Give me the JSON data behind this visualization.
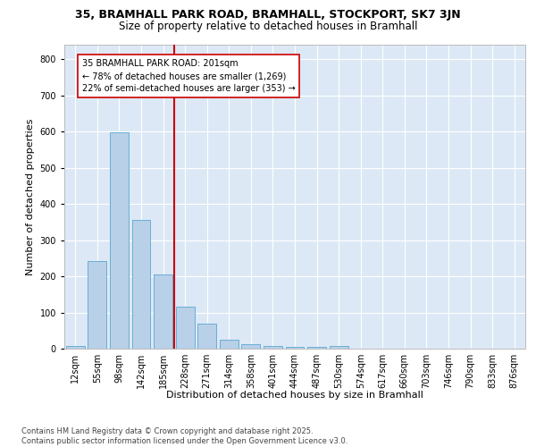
{
  "title1": "35, BRAMHALL PARK ROAD, BRAMHALL, STOCKPORT, SK7 3JN",
  "title2": "Size of property relative to detached houses in Bramhall",
  "xlabel": "Distribution of detached houses by size in Bramhall",
  "ylabel": "Number of detached properties",
  "bin_labels": [
    "12sqm",
    "55sqm",
    "98sqm",
    "142sqm",
    "185sqm",
    "228sqm",
    "271sqm",
    "314sqm",
    "358sqm",
    "401sqm",
    "444sqm",
    "487sqm",
    "530sqm",
    "574sqm",
    "617sqm",
    "660sqm",
    "703sqm",
    "746sqm",
    "790sqm",
    "833sqm",
    "876sqm"
  ],
  "bar_values": [
    8,
    242,
    598,
    355,
    205,
    115,
    70,
    25,
    13,
    8,
    5,
    5,
    8,
    0,
    0,
    0,
    0,
    0,
    0,
    0,
    0
  ],
  "bar_color": "#b8d0e8",
  "bar_edge_color": "#6aaed6",
  "vline_bin_index": 4,
  "annotation_text": "35 BRAMHALL PARK ROAD: 201sqm\n← 78% of detached houses are smaller (1,269)\n22% of semi-detached houses are larger (353) →",
  "annotation_box_color": "#ffffff",
  "annotation_box_edge_color": "#cc0000",
  "vline_color": "#cc0000",
  "ylim": [
    0,
    840
  ],
  "yticks": [
    0,
    100,
    200,
    300,
    400,
    500,
    600,
    700,
    800
  ],
  "background_color": "#dce8f5",
  "footer_text": "Contains HM Land Registry data © Crown copyright and database right 2025.\nContains public sector information licensed under the Open Government Licence v3.0.",
  "title1_fontsize": 9,
  "title2_fontsize": 8.5,
  "xlabel_fontsize": 8,
  "ylabel_fontsize": 8,
  "annotation_fontsize": 7,
  "footer_fontsize": 6,
  "tick_fontsize": 7
}
